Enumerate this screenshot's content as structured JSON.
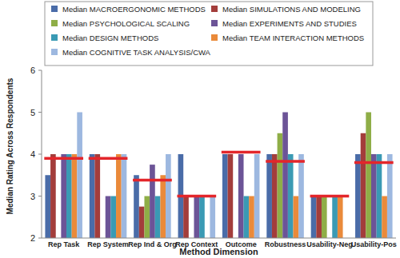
{
  "chart_data": {
    "type": "bar",
    "x_label": "Method Dimension",
    "y_label": "Median Rating Across Respondents",
    "categories": [
      "Rep Task",
      "Rep System",
      "Rep Ind & Org",
      "Rep Context",
      "Outcome",
      "Robustness",
      "Usability-Neg",
      "Usability-Pos"
    ],
    "series": [
      {
        "name": "Median MACROERGONOMIC METHODS",
        "color": "#4a6ca8",
        "values": [
          3.5,
          4,
          3.5,
          4,
          4,
          4,
          3,
          4
        ]
      },
      {
        "name": "Median SIMULATIONS AND MODELING",
        "color": "#a33d3b",
        "values": [
          4,
          4,
          2.75,
          3,
          4,
          4,
          3,
          4.5
        ]
      },
      {
        "name": "Median PSYCHOLOGICAL SCALING",
        "color": "#8fae47",
        "values": [
          2,
          2,
          3,
          2,
          2,
          4.5,
          3,
          5
        ]
      },
      {
        "name": "Median EXPERIMENTS AND STUDIES",
        "color": "#6c5497",
        "values": [
          4,
          3,
          3.75,
          3,
          4,
          5,
          2,
          4
        ]
      },
      {
        "name": "Median DESIGN METHODS",
        "color": "#3a9ab4",
        "values": [
          4,
          3,
          3,
          3,
          3,
          4,
          3,
          4
        ]
      },
      {
        "name": "Median TEAM INTERACTION METHODS",
        "color": "#ea8a3a",
        "values": [
          4,
          4,
          3.5,
          2,
          3,
          3,
          3,
          3
        ]
      },
      {
        "name": "Median COGNITIVE TASK ANALYSIS/CWA",
        "color": "#9db8e0",
        "values": [
          5,
          4,
          4,
          3,
          4,
          4,
          2,
          4
        ]
      }
    ],
    "reference_lines": {
      "color": "#e3262b",
      "values": [
        3.9,
        3.9,
        3.38,
        3.0,
        4.05,
        3.83,
        3.0,
        3.8
      ]
    },
    "ylim": [
      2,
      6
    ],
    "yticks": [
      2,
      3,
      4,
      5,
      6
    ],
    "grid": false
  }
}
